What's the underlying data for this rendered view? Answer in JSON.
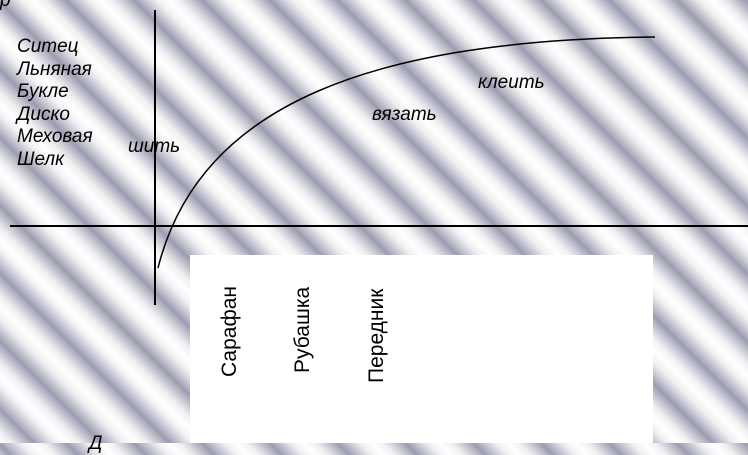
{
  "fabrics": [
    "Ситец",
    "Льняная",
    "Букле",
    "Диско",
    "Меховая",
    "Шелк"
  ],
  "actions": {
    "sew": "шить",
    "knit": "вязать",
    "glue": "клеить"
  },
  "garments": [
    "Сарафан",
    "Рубашка",
    "Передник"
  ]
}
